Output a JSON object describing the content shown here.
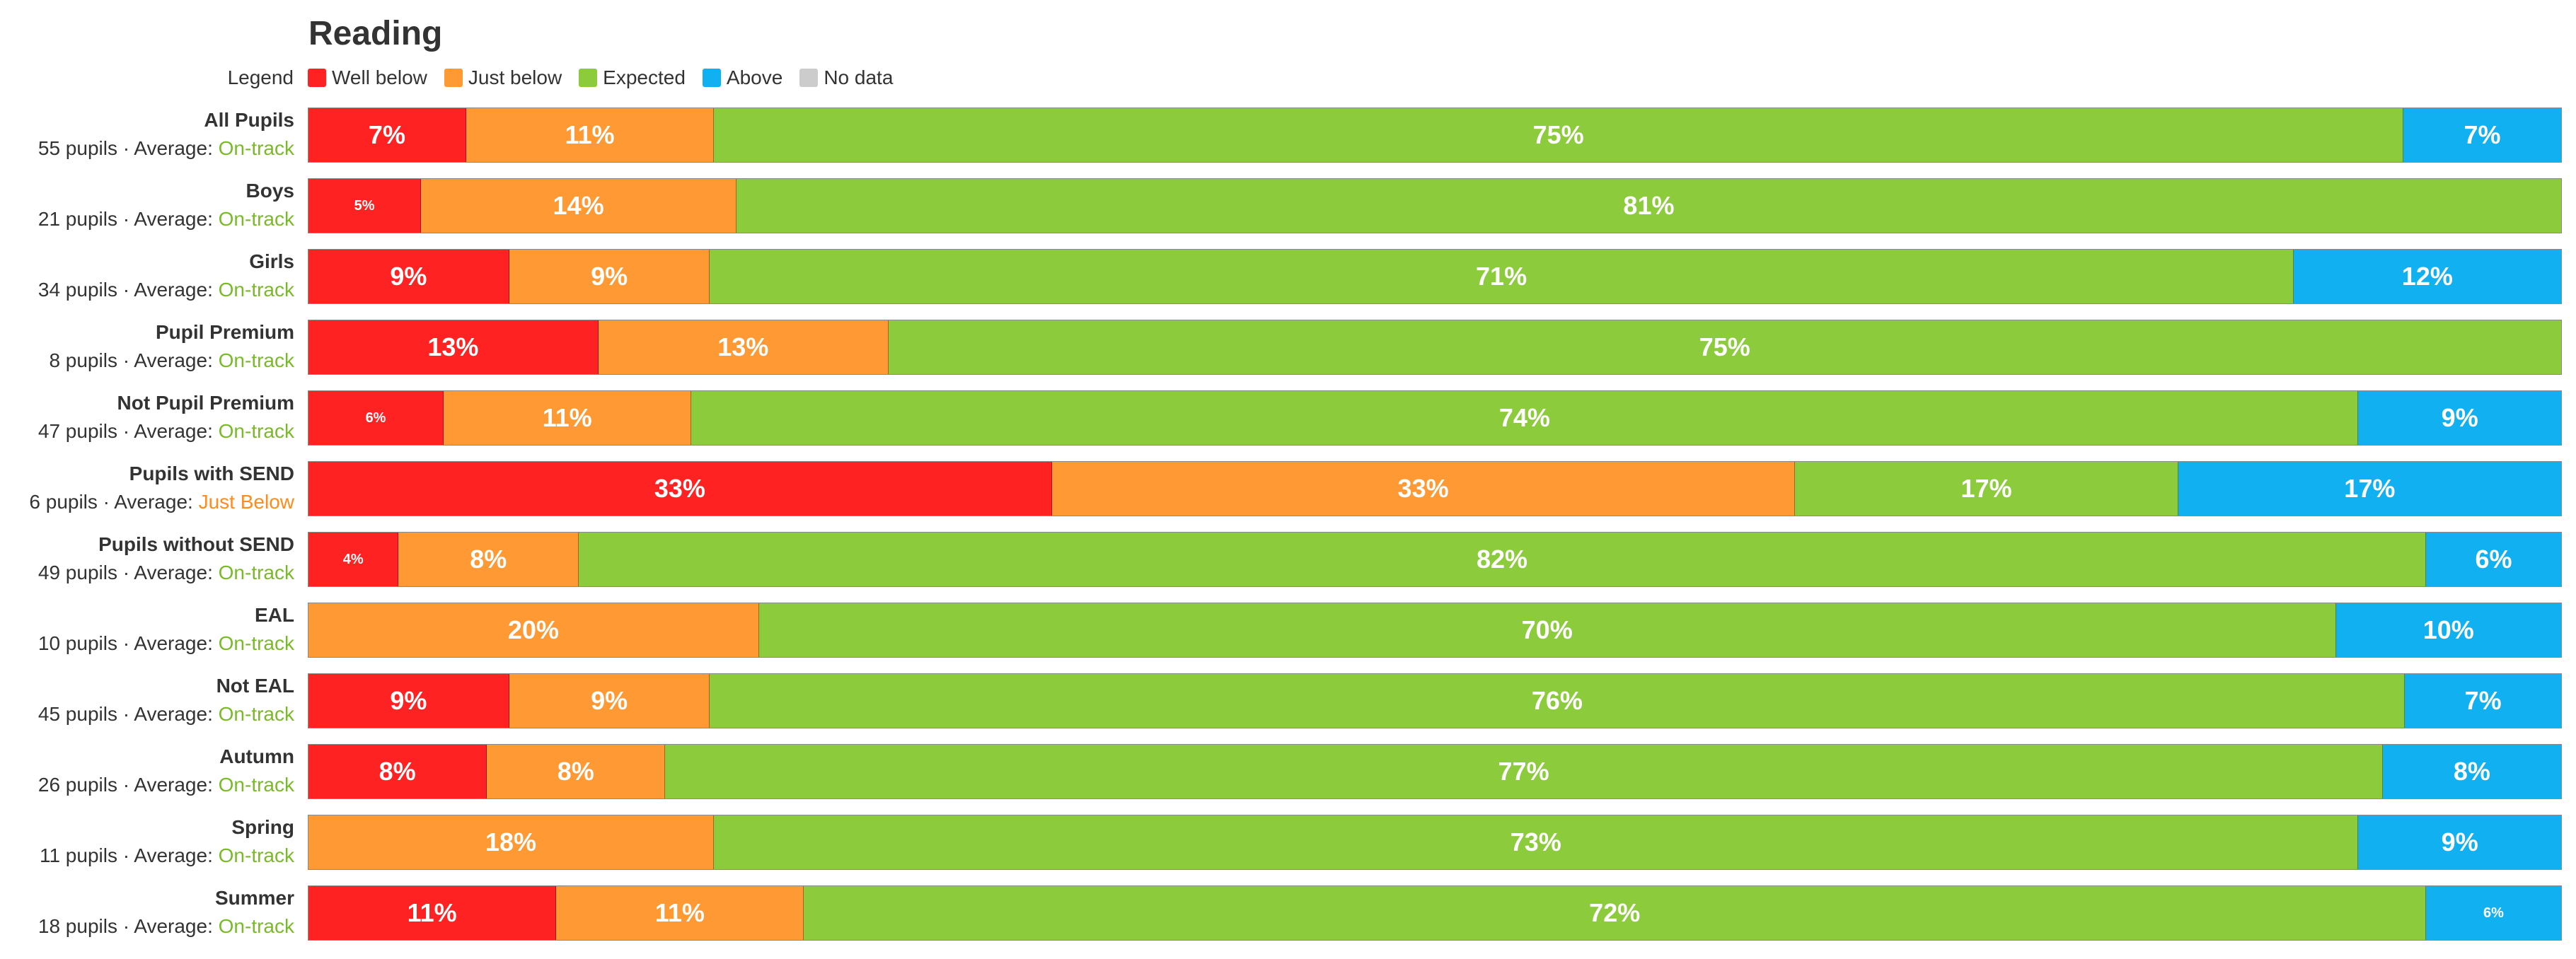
{
  "title": "Reading",
  "legend": {
    "label": "Legend",
    "items": [
      {
        "name": "Well below",
        "color": "#ff2222"
      },
      {
        "name": "Just below",
        "color": "#ff9933"
      },
      {
        "name": "Expected",
        "color": "#8ccc3c"
      },
      {
        "name": "Above",
        "color": "#11b0f0"
      },
      {
        "name": "No data",
        "color": "#cccccc"
      }
    ]
  },
  "average_prefix": "Average:",
  "status_colors": {
    "On-track": "#7ab929",
    "Just Below": "#ff8c1a"
  },
  "chart_data": {
    "type": "bar",
    "orientation": "horizontal",
    "stacked": true,
    "title": "Reading",
    "legend_placement": "top-left",
    "categories": [
      "All Pupils",
      "Boys",
      "Girls",
      "Pupil Premium",
      "Not Pupil Premium",
      "Pupils with SEND",
      "Pupils without SEND",
      "EAL",
      "Not EAL",
      "Autumn",
      "Spring",
      "Summer"
    ],
    "pupils": [
      "55 pupils",
      "21 pupils",
      "34 pupils",
      "8 pupils",
      "47 pupils",
      "6 pupils",
      "49 pupils",
      "10 pupils",
      "45 pupils",
      "26 pupils",
      "11 pupils",
      "18 pupils"
    ],
    "averages": [
      "On-track",
      "On-track",
      "On-track",
      "On-track",
      "On-track",
      "Just Below",
      "On-track",
      "On-track",
      "On-track",
      "On-track",
      "On-track",
      "On-track"
    ],
    "series": [
      {
        "name": "Well below",
        "values": [
          7,
          5,
          9,
          13,
          6,
          33,
          4,
          0,
          9,
          8,
          0,
          11
        ]
      },
      {
        "name": "Just below",
        "values": [
          11,
          14,
          9,
          13,
          11,
          33,
          8,
          20,
          9,
          8,
          18,
          11
        ]
      },
      {
        "name": "Expected",
        "values": [
          75,
          81,
          71,
          75,
          74,
          17,
          82,
          70,
          76,
          77,
          73,
          72
        ]
      },
      {
        "name": "Above",
        "values": [
          7,
          0,
          12,
          0,
          9,
          17,
          6,
          10,
          7,
          8,
          9,
          6
        ]
      },
      {
        "name": "No data",
        "values": [
          0,
          0,
          0,
          0,
          0,
          0,
          0,
          0,
          0,
          0,
          0,
          0
        ]
      }
    ],
    "unit": "%"
  }
}
